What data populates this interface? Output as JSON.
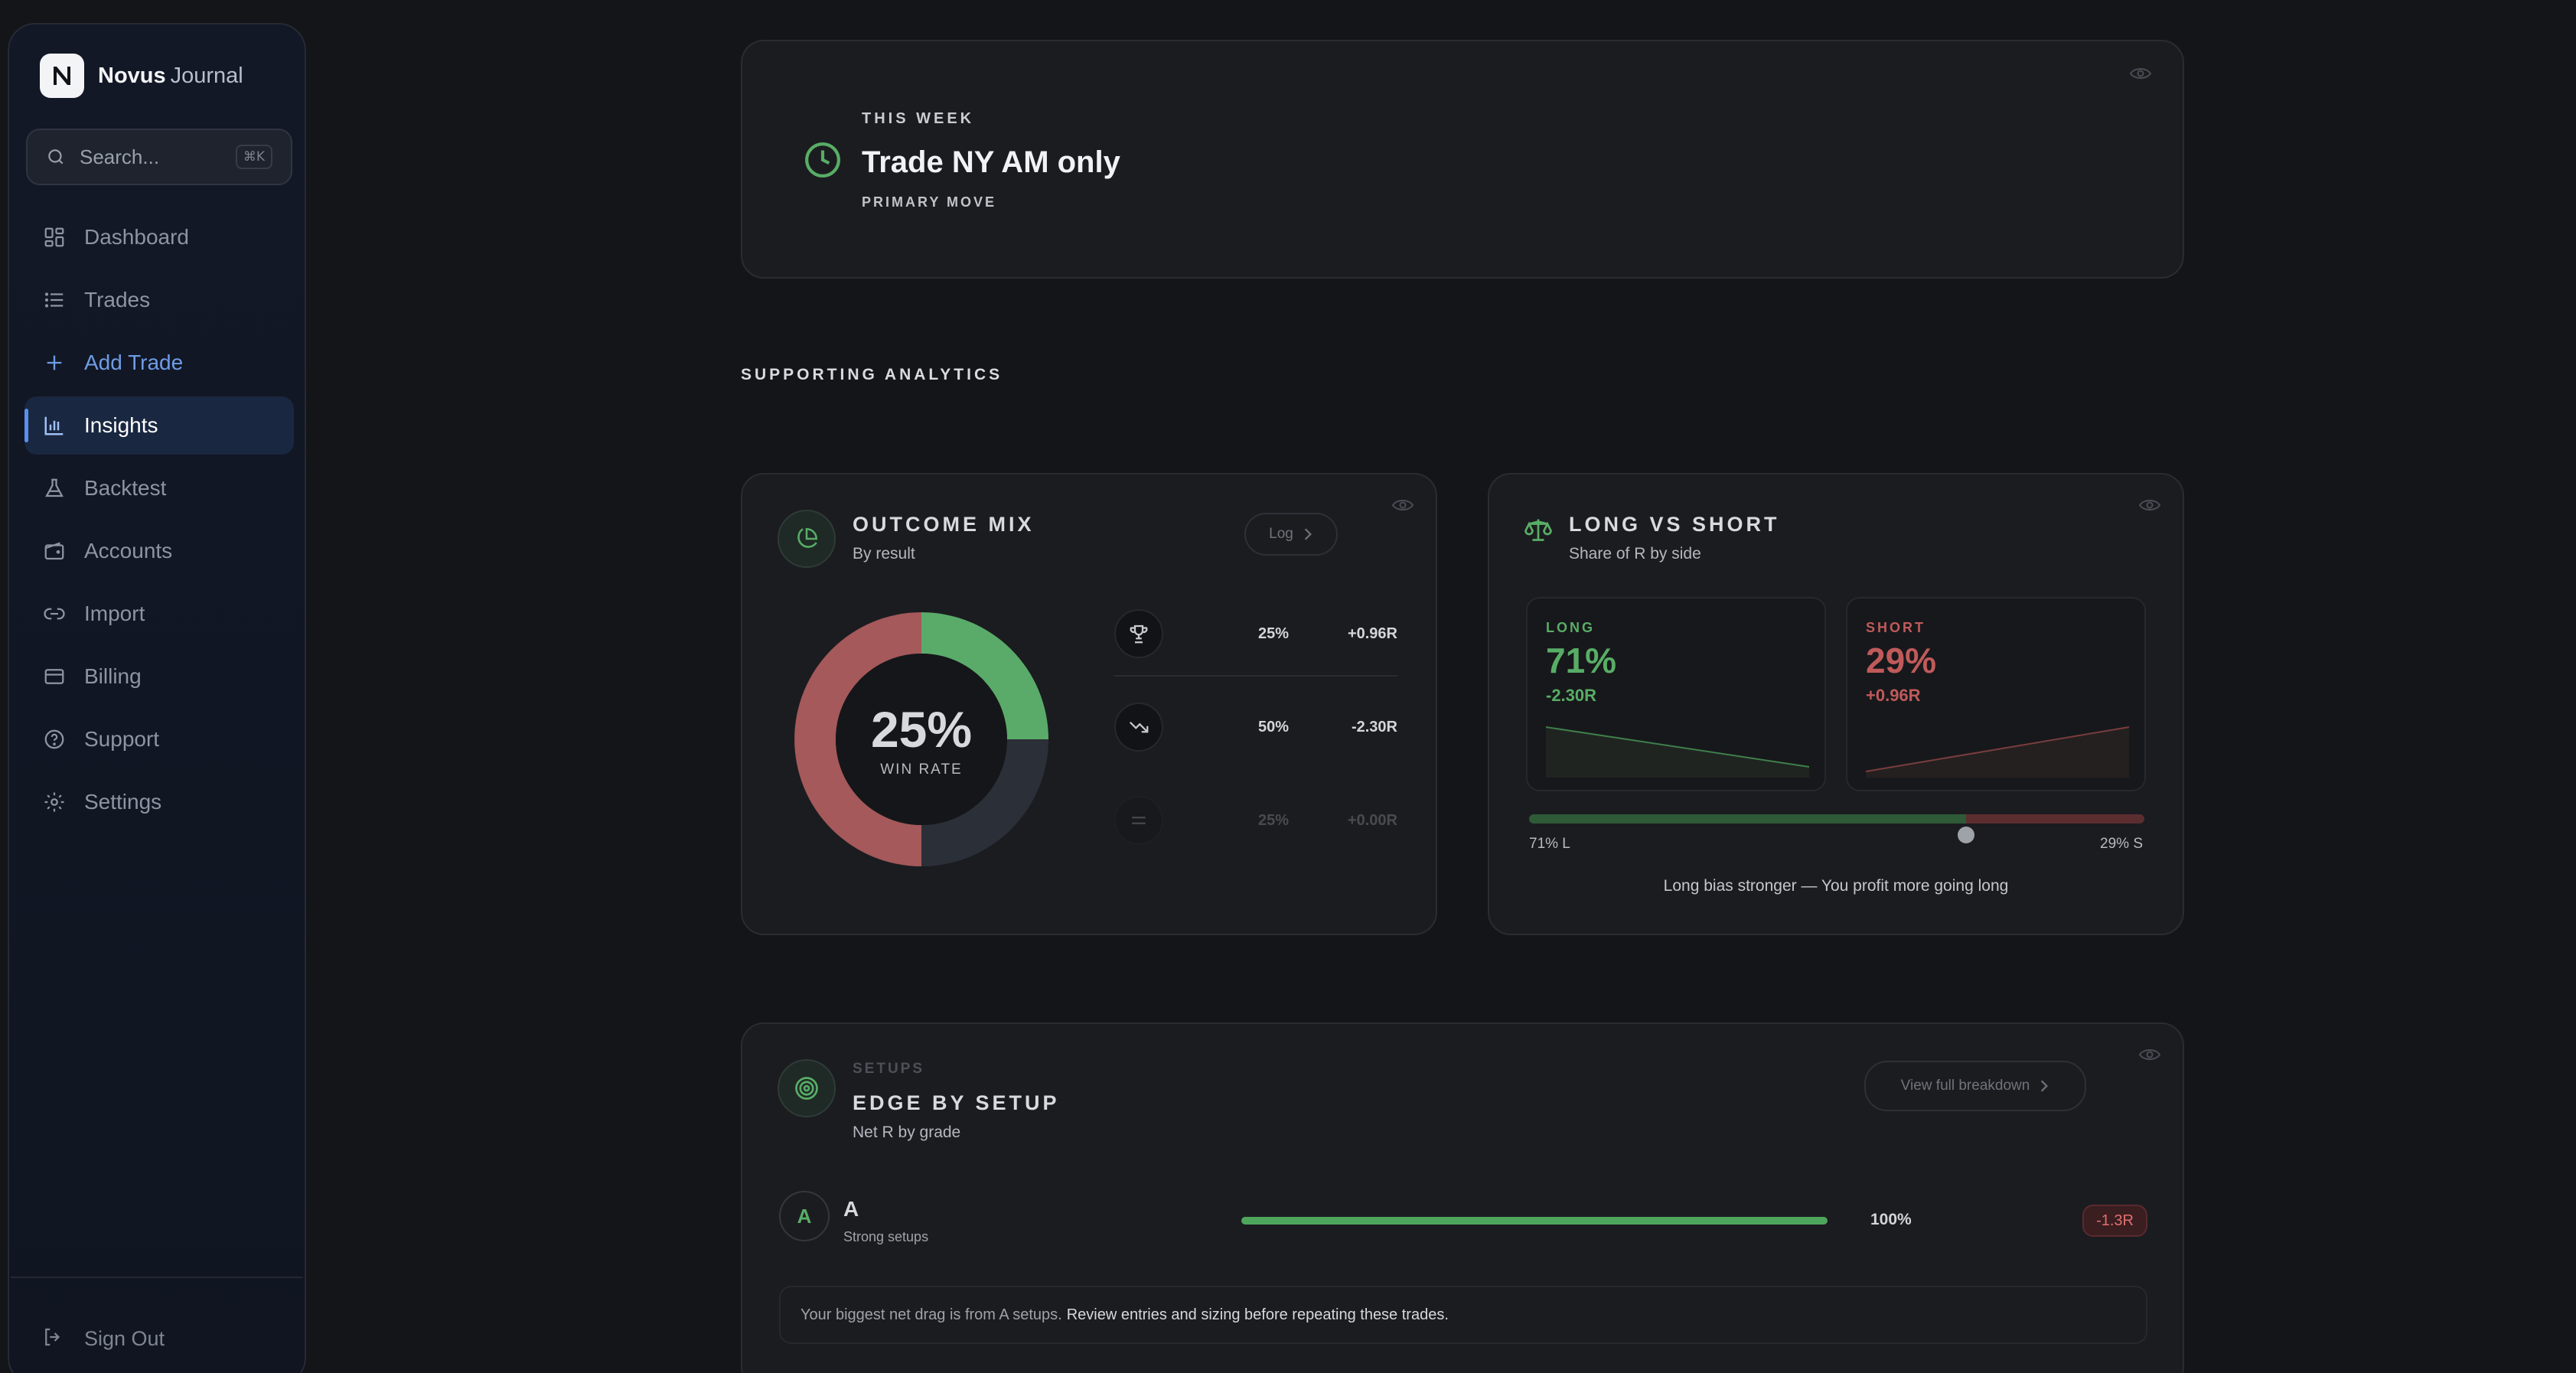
{
  "app": {
    "brand_bold": "Novus",
    "brand_light": "Journal"
  },
  "search": {
    "placeholder": "Search...",
    "shortcut": "⌘K"
  },
  "nav": {
    "items": [
      {
        "label": "Dashboard",
        "icon": "dashboard-icon"
      },
      {
        "label": "Trades",
        "icon": "list-icon"
      },
      {
        "label": "Add Trade",
        "icon": "plus-icon"
      },
      {
        "label": "Insights",
        "icon": "bar-chart-icon"
      },
      {
        "label": "Backtest",
        "icon": "flask-icon"
      },
      {
        "label": "Accounts",
        "icon": "wallet-icon"
      },
      {
        "label": "Import",
        "icon": "link-icon"
      },
      {
        "label": "Billing",
        "icon": "credit-card-icon"
      },
      {
        "label": "Support",
        "icon": "help-circle-icon"
      },
      {
        "label": "Settings",
        "icon": "gear-icon"
      }
    ],
    "active": "Insights",
    "sign_out": "Sign Out"
  },
  "hero": {
    "kicker": "THIS WEEK",
    "title": "Trade NY AM only",
    "subtitle": "PRIMARY MOVE"
  },
  "section_title": "SUPPORTING ANALYTICS",
  "outcome_mix": {
    "title": "OUTCOME MIX",
    "subtitle": "By result",
    "log_button": "Log",
    "center_value": "25%",
    "center_label": "WIN RATE",
    "rows": [
      {
        "icon": "trophy-icon",
        "pct": "25%",
        "r": "+0.96R"
      },
      {
        "icon": "trending-down-icon",
        "pct": "50%",
        "r": "-2.30R"
      },
      {
        "icon": "equals-icon",
        "pct": "25%",
        "r": "+0.00R"
      }
    ]
  },
  "chart_data": {
    "type": "pie",
    "title": "OUTCOME MIX",
    "categories": [
      "Win",
      "Loss",
      "Breakeven"
    ],
    "values": [
      25,
      50,
      25
    ],
    "colors": [
      "#5aab69",
      "#a5595a",
      "#2b2f38"
    ]
  },
  "long_short": {
    "title": "LONG VS SHORT",
    "subtitle": "Share of R by side",
    "long_label": "LONG",
    "long_pct": "71%",
    "long_r": "-2.30R",
    "short_label": "SHORT",
    "short_pct": "29%",
    "short_r": "+0.96R",
    "long_share": 0.71,
    "bar_left_label": "71% L",
    "bar_right_label": "29% S",
    "note": "Long bias stronger — You profit more going long"
  },
  "setups": {
    "kicker": "SETUPS",
    "title": "EDGE BY SETUP",
    "subtitle": "Net R by grade",
    "breakdown_button": "View full breakdown",
    "grade": "A",
    "grade_badge": "A",
    "grade_sub": "Strong setups",
    "grade_share": 1.0,
    "grade_pct": "100%",
    "grade_r": "-1.3R",
    "insight_muted": "Your biggest net drag is from A setups.",
    "insight_strong": "Review entries and sizing before repeating these trades."
  },
  "colors": {
    "win": "#5aab69",
    "loss": "#a5595a",
    "neutral": "#2b2f38",
    "accent": "#5a8ff0"
  }
}
